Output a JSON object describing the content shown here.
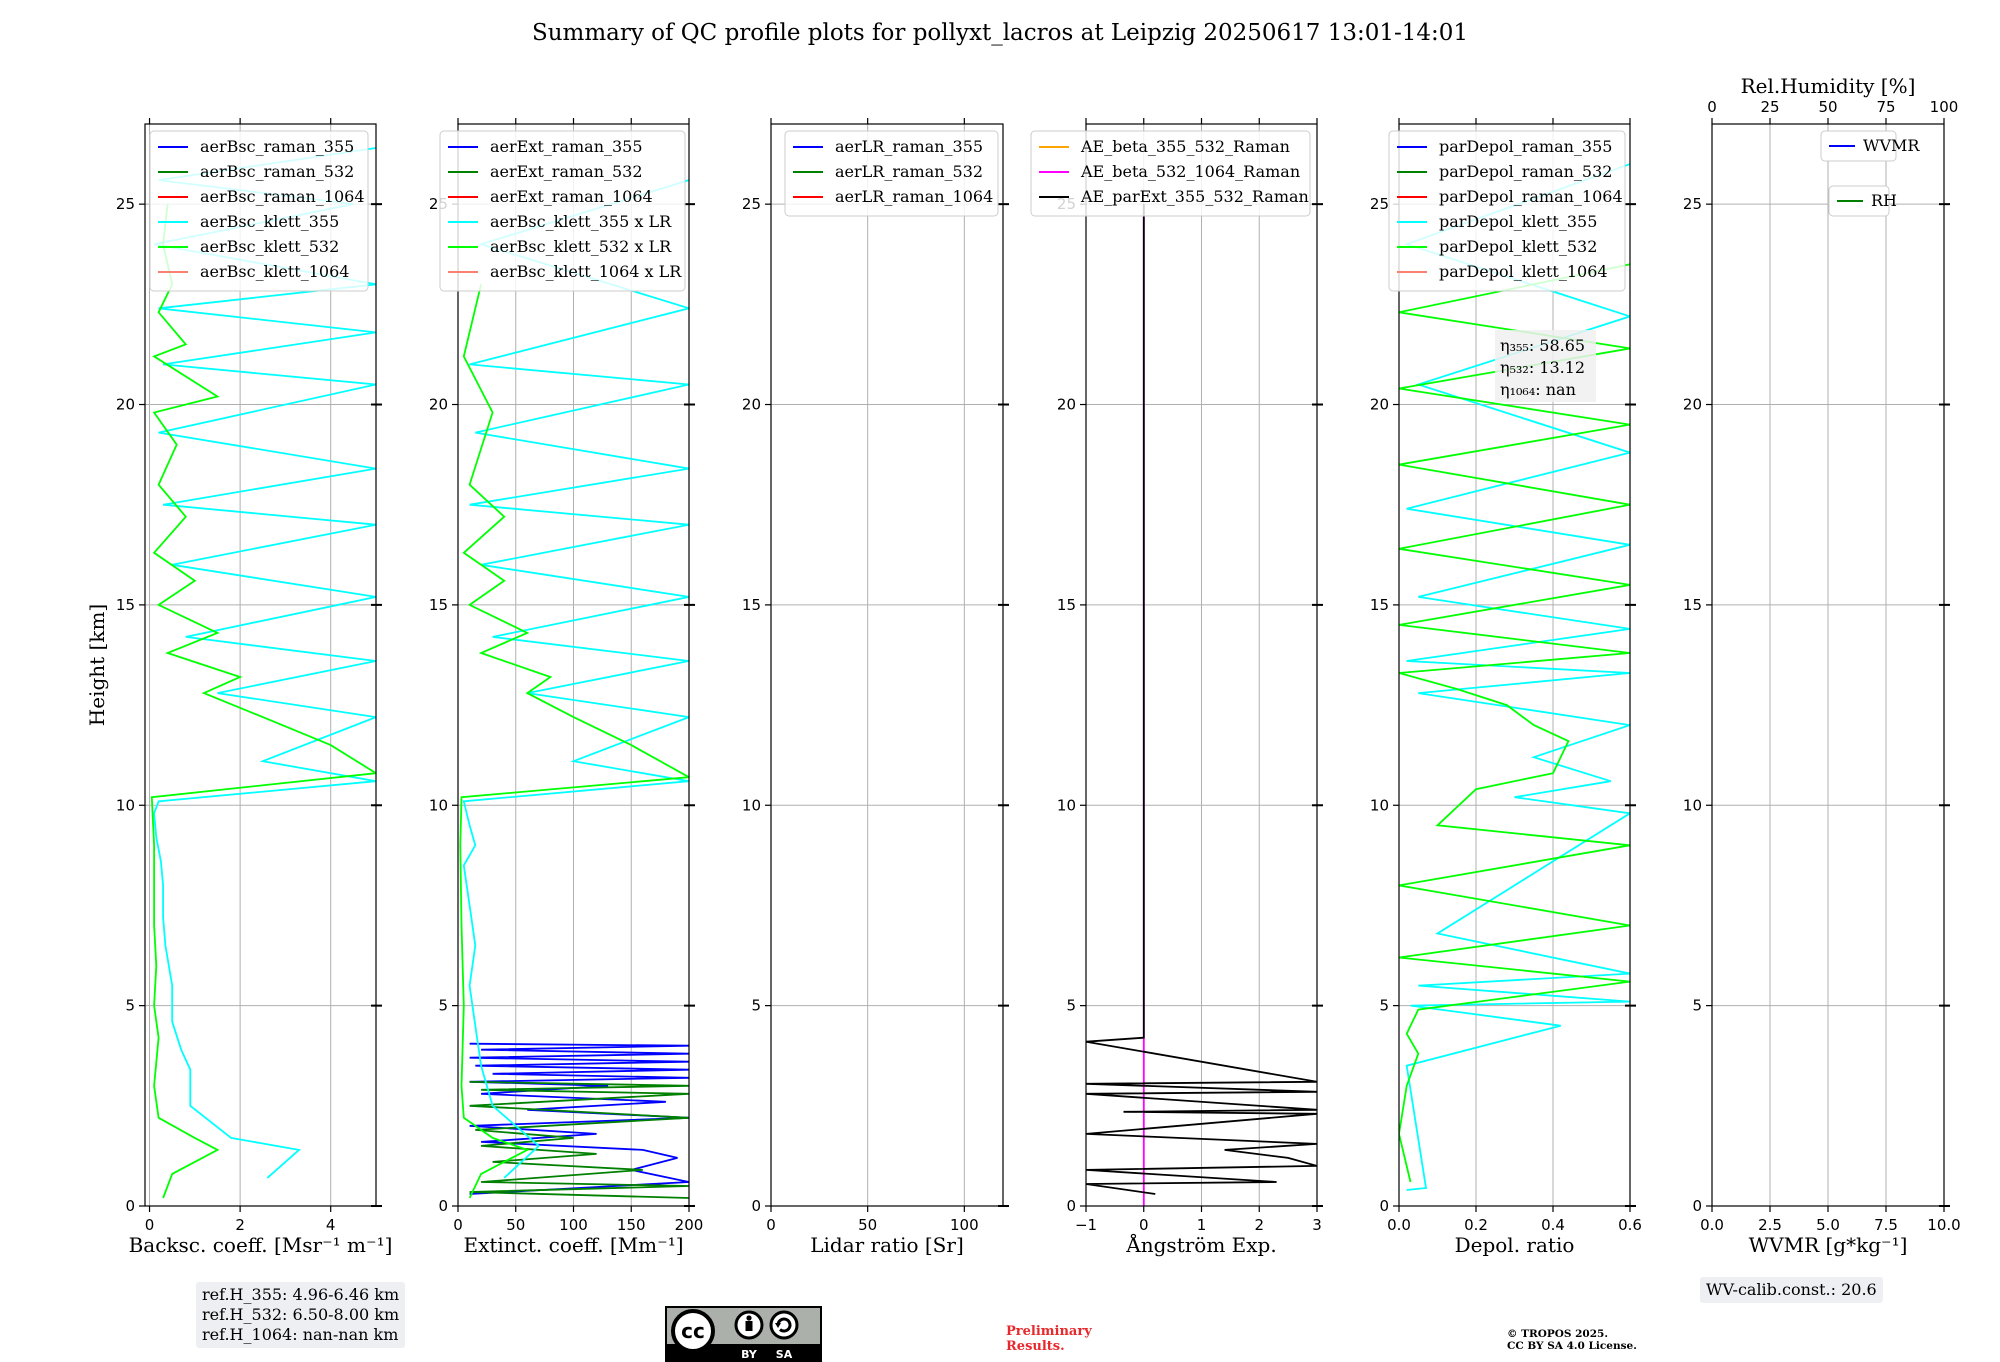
{
  "title": "Summary of QC profile plots for pollyxt_lacros at Leipzig 20250617 13:01-14:01",
  "chart_data": [
    {
      "type": "line",
      "xlabel": "Backsc. coeff. [Msr⁻¹ m⁻¹]",
      "ylabel": "Height [km]",
      "xlim": [
        -0.1,
        5.0
      ],
      "xticks": [
        "0",
        "2",
        "4"
      ],
      "xtick_values": [
        0,
        2,
        4
      ],
      "ylim": [
        0,
        27
      ],
      "yticks": [
        "0",
        "5",
        "10",
        "15",
        "20",
        "25"
      ],
      "ytick_values": [
        0,
        5,
        10,
        15,
        20,
        25
      ],
      "grid": true,
      "legend_position": "top-right",
      "series": [
        {
          "name": "aerBsc_raman_355",
          "color": "#0000ff",
          "x": [],
          "y": []
        },
        {
          "name": "aerBsc_raman_532",
          "color": "#008000",
          "x": [],
          "y": []
        },
        {
          "name": "aerBsc_raman_1064",
          "color": "#ff0000",
          "x": [],
          "y": []
        },
        {
          "name": "aerBsc_klett_355",
          "color": "#00ffff",
          "x": [
            2.6,
            3.3,
            1.8,
            0.9,
            0.9,
            0.7,
            0.5,
            0.5,
            0.35,
            0.3,
            0.3,
            0.25,
            0.15,
            0.1,
            0.2,
            5.0,
            2.5,
            5.0,
            1.5,
            5.0,
            0.8,
            5.0,
            0.5,
            5.0,
            0.3,
            5.0,
            0.2,
            5.0,
            0.3,
            5.0,
            0.2,
            5.0,
            0.1,
            4.5,
            0.2,
            5.0
          ],
          "y": [
            0.7,
            1.4,
            1.7,
            2.5,
            3.4,
            3.9,
            4.6,
            5.5,
            6.5,
            7.2,
            8.0,
            8.6,
            9.2,
            9.8,
            10.1,
            10.6,
            11.1,
            12.2,
            12.8,
            13.6,
            14.2,
            15.2,
            16.0,
            17.0,
            17.5,
            18.4,
            19.3,
            20.5,
            21.0,
            21.8,
            22.4,
            23.0,
            24.0,
            25.0,
            25.6,
            26.4
          ]
        },
        {
          "name": "aerBsc_klett_532",
          "color": "#00ff00",
          "x": [
            0.3,
            0.5,
            1.5,
            1.0,
            0.2,
            0.1,
            0.2,
            0.1,
            0.15,
            0.1,
            0.1,
            0.1,
            0.05,
            5.0,
            4.0,
            2.5,
            1.2,
            2.0,
            0.4,
            1.5,
            0.2,
            1.0,
            0.1,
            0.8,
            0.2,
            0.6,
            0.1,
            1.5,
            0.1,
            0.8,
            0.2,
            0.5,
            0.3,
            0.4
          ],
          "y": [
            0.2,
            0.8,
            1.4,
            1.7,
            2.2,
            3.0,
            4.2,
            5.0,
            6.0,
            7.0,
            8.0,
            9.0,
            10.2,
            10.8,
            11.5,
            12.2,
            12.8,
            13.2,
            13.8,
            14.3,
            15.0,
            15.6,
            16.3,
            17.2,
            18.0,
            19.0,
            19.8,
            20.2,
            21.2,
            21.5,
            22.3,
            23.0,
            24.0,
            25.0
          ]
        },
        {
          "name": "aerBsc_klett_1064",
          "color": "#fa8072",
          "x": [],
          "y": []
        }
      ],
      "annotations": [
        "ref.H_355: 4.96-6.46 km",
        "ref.H_532: 6.50-8.00 km",
        "ref.H_1064: nan-nan km"
      ]
    },
    {
      "type": "line",
      "xlabel": "Extinct. coeff. [Mm⁻¹]",
      "xlim": [
        0,
        200
      ],
      "xticks": [
        "0",
        "50",
        "100",
        "150",
        "200"
      ],
      "xtick_values": [
        0,
        50,
        100,
        150,
        200
      ],
      "ylim": [
        0,
        27
      ],
      "yticks": [
        "0",
        "5",
        "10",
        "15",
        "20",
        "25"
      ],
      "ytick_values": [
        0,
        5,
        10,
        15,
        20,
        25
      ],
      "grid": true,
      "legend_position": "top-right",
      "series": [
        {
          "name": "aerExt_raman_355",
          "color": "#0000ff",
          "x": [
            10,
            200,
            150,
            190,
            160,
            20,
            120,
            10,
            200,
            60,
            180,
            20,
            130,
            10,
            200,
            30,
            200,
            15,
            200,
            10,
            200,
            20,
            200,
            10
          ],
          "y": [
            0.3,
            0.6,
            0.9,
            1.2,
            1.4,
            1.6,
            1.8,
            2.0,
            2.2,
            2.4,
            2.6,
            2.8,
            3.0,
            3.1,
            3.2,
            3.3,
            3.4,
            3.5,
            3.6,
            3.7,
            3.8,
            3.9,
            4.0,
            4.05
          ]
        },
        {
          "name": "aerExt_raman_532",
          "color": "#008000",
          "x": [
            200,
            10,
            200,
            20,
            160,
            30,
            120,
            20,
            100,
            15,
            200,
            10,
            200,
            20,
            200,
            10
          ],
          "y": [
            0.2,
            0.35,
            0.5,
            0.6,
            0.9,
            1.1,
            1.3,
            1.5,
            1.7,
            1.9,
            2.2,
            2.5,
            2.8,
            2.9,
            3.0,
            3.1
          ]
        },
        {
          "name": "aerExt_raman_1064",
          "color": "#ff0000",
          "x": [],
          "y": []
        },
        {
          "name": "aerBsc_klett_355 x LR",
          "color": "#00ffff",
          "x": [
            40,
            70,
            30,
            20,
            15,
            10,
            15,
            10,
            5,
            15,
            10,
            5,
            200,
            100,
            200,
            60,
            200,
            30,
            200,
            20,
            200,
            10,
            200,
            15,
            200,
            10,
            200,
            20,
            200
          ],
          "y": [
            0.7,
            1.5,
            2.5,
            3.5,
            4.5,
            5.5,
            6.5,
            7.5,
            8.5,
            9.0,
            9.5,
            10.1,
            10.6,
            11.1,
            12.2,
            12.8,
            13.6,
            14.2,
            15.2,
            16.0,
            17.0,
            17.5,
            18.4,
            19.3,
            20.5,
            21.0,
            22.4,
            24.0,
            25.6
          ]
        },
        {
          "name": "aerBsc_klett_532 x LR",
          "color": "#00ff00",
          "x": [
            10,
            20,
            60,
            30,
            5,
            3,
            5,
            3,
            2,
            3,
            200,
            150,
            100,
            60,
            80,
            20,
            60,
            10,
            40,
            5,
            40,
            10,
            30,
            5,
            20
          ],
          "y": [
            0.2,
            0.8,
            1.4,
            1.7,
            2.2,
            3.0,
            5.0,
            7.0,
            9.0,
            10.2,
            10.7,
            11.5,
            12.2,
            12.8,
            13.2,
            13.8,
            14.3,
            15.0,
            15.6,
            16.3,
            17.2,
            18.0,
            19.8,
            21.2,
            23.0
          ]
        },
        {
          "name": "aerBsc_klett_1064 x LR",
          "color": "#fa8072",
          "x": [],
          "y": []
        }
      ]
    },
    {
      "type": "line",
      "xlabel": "Lidar ratio [Sr]",
      "xlim": [
        0,
        120
      ],
      "xticks": [
        "0",
        "50",
        "100"
      ],
      "xtick_values": [
        0,
        50,
        100
      ],
      "ylim": [
        0,
        27
      ],
      "yticks": [
        "0",
        "5",
        "10",
        "15",
        "20",
        "25"
      ],
      "ytick_values": [
        0,
        5,
        10,
        15,
        20,
        25
      ],
      "grid": true,
      "legend_position": "top-right",
      "series": [
        {
          "name": "aerLR_raman_355",
          "color": "#0000ff",
          "x": [],
          "y": []
        },
        {
          "name": "aerLR_raman_532",
          "color": "#008000",
          "x": [],
          "y": []
        },
        {
          "name": "aerLR_raman_1064",
          "color": "#ff0000",
          "x": [],
          "y": []
        }
      ]
    },
    {
      "type": "line",
      "xlabel": "Ångström Exp.",
      "xlim": [
        -1,
        3
      ],
      "xticks": [
        "−1",
        "0",
        "1",
        "2",
        "3"
      ],
      "xtick_values": [
        -1,
        0,
        1,
        2,
        3
      ],
      "ylim": [
        0,
        27
      ],
      "yticks": [
        "0",
        "5",
        "10",
        "15",
        "20",
        "25"
      ],
      "ytick_values": [
        0,
        5,
        10,
        15,
        20,
        25
      ],
      "grid": true,
      "legend_position": "top-right",
      "series": [
        {
          "name": "AE_beta_355_532_Raman",
          "color": "#ffa500",
          "x": [],
          "y": []
        },
        {
          "name": "AE_beta_532_1064_Raman",
          "color": "#ff00ff",
          "x": [
            0,
            0
          ],
          "y": [
            0,
            25
          ]
        },
        {
          "name": "AE_parExt_355_532_Raman",
          "color": "#000000",
          "x": [
            0.2,
            -1,
            2.3,
            -1,
            3,
            2.5,
            1.4,
            3,
            -1,
            3,
            -0.35,
            3,
            -1,
            3,
            -1,
            3,
            -1,
            0,
            0
          ],
          "y": [
            0.3,
            0.55,
            0.6,
            0.9,
            1.0,
            1.2,
            1.4,
            1.55,
            1.8,
            2.3,
            2.35,
            2.4,
            2.8,
            2.85,
            3.05,
            3.1,
            4.1,
            4.2,
            25
          ]
        }
      ]
    },
    {
      "type": "line",
      "xlabel": "Depol. ratio",
      "xlim": [
        0,
        0.6
      ],
      "xticks": [
        "0.0",
        "0.2",
        "0.4",
        "0.6"
      ],
      "xtick_values": [
        0,
        0.2,
        0.4,
        0.6
      ],
      "ylim": [
        0,
        27
      ],
      "yticks": [
        "0",
        "5",
        "10",
        "15",
        "20",
        "25"
      ],
      "ytick_values": [
        0,
        5,
        10,
        15,
        20,
        25
      ],
      "grid": true,
      "legend_position": "top-right",
      "series": [
        {
          "name": "parDepol_raman_355",
          "color": "#0000ff",
          "x": [],
          "y": []
        },
        {
          "name": "parDepol_raman_532",
          "color": "#008000",
          "x": [],
          "y": []
        },
        {
          "name": "parDepol_raman_1064",
          "color": "#ff0000",
          "x": [],
          "y": []
        },
        {
          "name": "parDepol_klett_355",
          "color": "#00ffff",
          "x": [
            0.02,
            0.07,
            0.02,
            0.42,
            0.03,
            0.6,
            0.05,
            0.6,
            0.1,
            0.6,
            0.3,
            0.55,
            0.35,
            0.6,
            0.05,
            0.6,
            0.02,
            0.6,
            0.05,
            0.6,
            0.02,
            0.6,
            0.05,
            0.6,
            0.02,
            0.6
          ],
          "y": [
            0.4,
            0.45,
            3.5,
            4.5,
            5.0,
            5.1,
            5.5,
            5.8,
            6.8,
            9.8,
            10.2,
            10.6,
            11.2,
            12.0,
            12.8,
            13.3,
            13.6,
            14.4,
            15.2,
            16.5,
            17.4,
            18.8,
            20.5,
            22.2,
            24.0,
            26.0
          ]
        },
        {
          "name": "parDepol_klett_532",
          "color": "#00ff00",
          "x": [
            0.03,
            0.0,
            0.02,
            0.05,
            0.02,
            0.05,
            0.6,
            0.0,
            0.6,
            0.0,
            0.6,
            0.1,
            0.2,
            0.4,
            0.44,
            0.35,
            0.28,
            0.15,
            0.0,
            0.6,
            0.0,
            0.6,
            0.0,
            0.6,
            0.0,
            0.6,
            0.0,
            0.6,
            0.0,
            0.6
          ],
          "y": [
            0.6,
            1.8,
            3.0,
            3.8,
            4.3,
            4.9,
            5.6,
            6.2,
            7.0,
            8.0,
            9.0,
            9.5,
            10.4,
            10.8,
            11.6,
            12.0,
            12.5,
            12.9,
            13.3,
            13.8,
            14.5,
            15.5,
            16.4,
            17.5,
            18.5,
            19.5,
            20.4,
            21.4,
            22.3,
            23.5
          ]
        },
        {
          "name": "parDepol_klett_1064",
          "color": "#fa8072",
          "x": [],
          "y": []
        }
      ],
      "annotations": [
        "η₃₅₅: 58.65",
        "η₅₃₂: 13.12",
        "η₁₀₆₄: nan"
      ]
    },
    {
      "type": "line",
      "xlabel": "WVMR [g*kg⁻¹]",
      "xlim": [
        0,
        10
      ],
      "xticks": [
        "0.0",
        "2.5",
        "5.0",
        "7.5",
        "10.0"
      ],
      "xtick_values": [
        0,
        2.5,
        5,
        7.5,
        10
      ],
      "top_axis_label": "Rel.Humidity [%]",
      "top_xlim": [
        0,
        100
      ],
      "top_xticks": [
        "0",
        "25",
        "50",
        "75",
        "100"
      ],
      "top_xtick_values": [
        0,
        25,
        50,
        75,
        100
      ],
      "ylim": [
        0,
        27
      ],
      "yticks": [
        "0",
        "5",
        "10",
        "15",
        "20",
        "25"
      ],
      "ytick_values": [
        0,
        5,
        10,
        15,
        20,
        25
      ],
      "grid": true,
      "legend_position": "top-right",
      "series": [
        {
          "name": "WVMR",
          "color": "#0000ff",
          "x": [],
          "y": []
        },
        {
          "name": "RH",
          "color": "#008000",
          "x": [],
          "y": []
        }
      ],
      "annotations": [
        "WV-calib.const.: 20.6"
      ]
    }
  ],
  "footer": {
    "ref_lines": [
      "ref.H_355: 4.96-6.46 km",
      "ref.H_532: 6.50-8.00 km",
      "ref.H_1064: nan-nan km"
    ],
    "wv_calib": "WV-calib.const.: 20.6",
    "preliminary": [
      "Preliminary",
      "Results."
    ],
    "copyright": [
      "© TROPOS 2025.",
      "CC BY SA 4.0 License."
    ],
    "license_badge": [
      "BY",
      "SA"
    ]
  },
  "depol_eta": [
    "η₃₅₅: 58.65",
    "η₅₃₂: 13.12",
    "η₁₀₆₄: nan"
  ]
}
